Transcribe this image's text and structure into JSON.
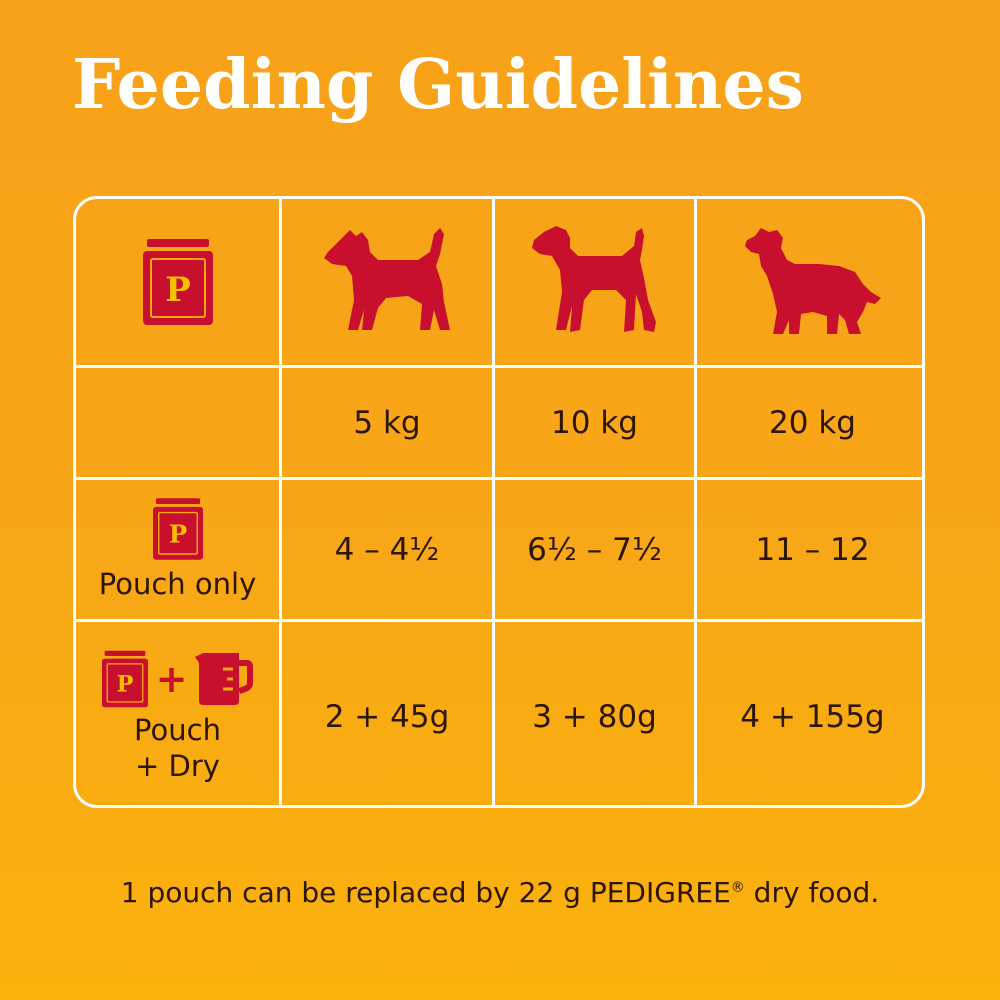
{
  "title": "Feeding Guidelines",
  "header": {
    "pouch_icon_letter": "P",
    "weights": [
      "5 kg",
      "10 kg",
      "20 kg"
    ]
  },
  "rows": [
    {
      "label": "Pouch only",
      "values": [
        "4 – 4½",
        "6½ – 7½",
        "11 – 12"
      ]
    },
    {
      "label_line1": "Pouch",
      "label_line2": "+ Dry",
      "values": [
        "2 + 45g",
        "3 + 80g",
        "4 + 155g"
      ]
    }
  ],
  "footnote": {
    "text": "1 pouch can be replaced by 22 g PEDIGREE",
    "registered": "®",
    "suffix": " dry food."
  },
  "colors": {
    "background": "#f8a716",
    "brand_red": "#c8102e",
    "text": "#2e1607",
    "grid_lines": "#ffffff"
  }
}
